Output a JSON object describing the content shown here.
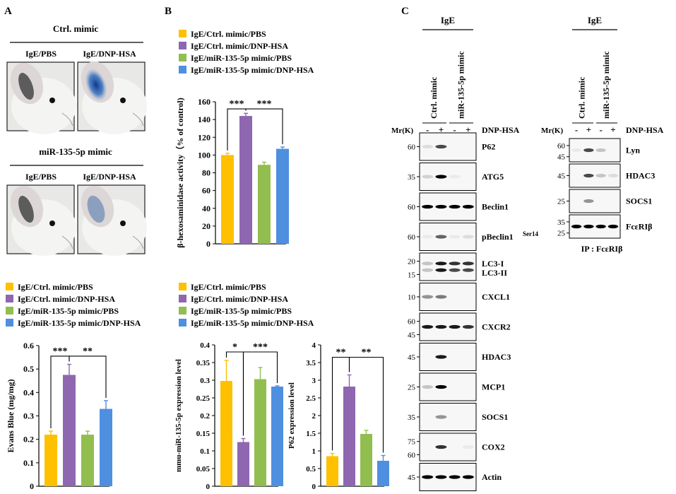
{
  "colors": {
    "ctrl_pbs": "#FFC000",
    "ctrl_dnp": "#8E67B0",
    "mir_pbs": "#92BE4F",
    "mir_dnp": "#4F8FE0"
  },
  "panels": {
    "a": "A",
    "b": "B",
    "c": "C"
  },
  "legend": [
    "IgE/Ctrl. mimic/PBS",
    "IgE/Ctrl. mimic/DNP-HSA",
    "IgE/miR-135-5p mimic/PBS",
    "IgE/miR-135-5p mimic/DNP-HSA"
  ],
  "panel_a": {
    "group1_title": "Ctrl. mimic",
    "group2_title": "miR-135-5p mimic",
    "photo_labels": [
      "IgE/PBS",
      "IgE/DNP-HSA",
      "IgE/PBS",
      "IgE/DNP-HSA"
    ],
    "photo_icon": "mouse-ear-photo"
  },
  "chart_data": [
    {
      "id": "beta-hex",
      "type": "bar",
      "title": "",
      "xlabel": "",
      "ylabel": "β-hexosaminidase activity（% of control)",
      "categories": [
        "IgE/Ctrl. mimic/PBS",
        "IgE/Ctrl. mimic/DNP-HSA",
        "IgE/miR-135-5p mimic/PBS",
        "IgE/miR-135-5p mimic/DNP-HSA"
      ],
      "values": [
        100,
        144,
        89,
        107
      ],
      "errors": [
        2,
        3,
        3,
        2
      ],
      "ylim": [
        0,
        160
      ],
      "yticks": [
        0,
        20,
        40,
        60,
        80,
        100,
        120,
        140,
        160
      ],
      "ytick_labels": [
        "0",
        "20",
        "40",
        "60",
        "80",
        "100",
        "120",
        "140",
        "160"
      ],
      "significance": [
        {
          "from": 0,
          "to": 1,
          "label": "***",
          "level": 152
        },
        {
          "from": 1,
          "to": 3,
          "label": "***",
          "level": 152
        }
      ]
    },
    {
      "id": "evans-blue",
      "type": "bar",
      "title": "",
      "xlabel": "",
      "ylabel": "Evans Blue (mg/mg)",
      "categories": [
        "IgE/Ctrl. mimic/PBS",
        "IgE/Ctrl. mimic/DNP-HSA",
        "IgE/miR-135-5p mimic/PBS",
        "IgE/miR-135-5p mimic/DNP-HSA"
      ],
      "values": [
        0.22,
        0.475,
        0.22,
        0.33
      ],
      "errors": [
        0.015,
        0.045,
        0.015,
        0.035
      ],
      "ylim": [
        0,
        0.6
      ],
      "yticks": [
        0,
        0.1,
        0.2,
        0.3,
        0.4,
        0.5,
        0.6
      ],
      "ytick_labels": [
        "0",
        "0.1",
        "0.2",
        "0.3",
        "0.4",
        "0.5",
        "0.6"
      ],
      "significance": [
        {
          "from": 0,
          "to": 1,
          "label": "***",
          "level": 0.555
        },
        {
          "from": 1,
          "to": 3,
          "label": "**",
          "level": 0.555
        }
      ]
    },
    {
      "id": "mir-expr",
      "type": "bar",
      "title": "",
      "xlabel": "",
      "ylabel": "mmu-miR-135-5p expression level",
      "categories": [
        "IgE/Ctrl. mimic/PBS",
        "IgE/Ctrl. mimic/DNP-HSA",
        "IgE/miR-135-5p mimic/PBS",
        "IgE/miR-135-5p mimic/DNP-HSA"
      ],
      "values": [
        0.298,
        0.125,
        0.303,
        0.282
      ],
      "errors": [
        0.058,
        0.01,
        0.033,
        0.002
      ],
      "ylim": [
        0,
        0.4
      ],
      "yticks": [
        0,
        0.05,
        0.1,
        0.15,
        0.2,
        0.25,
        0.3,
        0.35,
        0.4
      ],
      "ytick_labels": [
        "0",
        "0.05",
        "0.1",
        "0.15",
        "0.2",
        "0.25",
        "0.3",
        "0.35",
        "0.4"
      ],
      "significance": [
        {
          "from": 0,
          "to": 1,
          "label": "*",
          "level": 0.38
        },
        {
          "from": 1,
          "to": 3,
          "label": "***",
          "level": 0.38
        }
      ]
    },
    {
      "id": "p62-expr",
      "type": "bar",
      "title": "",
      "xlabel": "",
      "ylabel": "P62 expression level",
      "categories": [
        "IgE/Ctrl. mimic/PBS",
        "IgE/Ctrl. mimic/DNP-HSA",
        "IgE/miR-135-5p mimic/PBS",
        "IgE/miR-135-5p mimic/DNP-HSA"
      ],
      "values": [
        0.85,
        2.82,
        1.48,
        0.72
      ],
      "errors": [
        0.08,
        0.33,
        0.1,
        0.15
      ],
      "ylim": [
        0,
        4
      ],
      "yticks": [
        0,
        0.5,
        1,
        1.5,
        2,
        2.5,
        3,
        3.5,
        4
      ],
      "ytick_labels": [
        "0",
        "0.5",
        "1",
        "1.5",
        "2",
        "2.5",
        "3",
        "3.5",
        "4"
      ],
      "significance": [
        {
          "from": 0,
          "to": 1,
          "label": "**",
          "level": 3.65
        },
        {
          "from": 1,
          "to": 3,
          "label": "**",
          "level": 3.65
        }
      ]
    }
  ],
  "panel_c": {
    "header": "IgE",
    "lanes": [
      "Ctrl. mimic",
      "miR-135-5p mimic"
    ],
    "mw_label": "Mr(K)",
    "treatment_label": "DNP-HSA",
    "signs": [
      "-",
      "+",
      "-",
      "+"
    ],
    "blots": [
      {
        "label": "P62",
        "markers": [
          "60"
        ]
      },
      {
        "label": "ATG5",
        "markers": [
          "35"
        ]
      },
      {
        "label": "Beclin1",
        "markers": [
          "60"
        ]
      },
      {
        "label": "pBeclin1",
        "sup": "Ser14",
        "markers": [
          "60"
        ]
      },
      {
        "label": "LC3-I",
        "label2": "LC3-II",
        "markers": [
          "20",
          "15"
        ]
      },
      {
        "label": "CXCL1",
        "markers": [
          "10"
        ]
      },
      {
        "label": "CXCR2",
        "markers": [
          "60",
          "45"
        ]
      },
      {
        "label": "HDAC3",
        "markers": [
          "45"
        ]
      },
      {
        "label": "MCP1",
        "markers": [
          "25"
        ]
      },
      {
        "label": "SOCS1",
        "markers": [
          "35"
        ]
      },
      {
        "label": "COX2",
        "markers": [
          "75",
          "60"
        ]
      },
      {
        "label": "Actin",
        "markers": [
          "45"
        ]
      }
    ]
  },
  "panel_c_ip": {
    "header": "IgE",
    "lanes": [
      "Ctrl. mimic",
      "miR-135-5p mimic"
    ],
    "mw_label": "Mr(K)",
    "treatment_label": "DNP-HSA",
    "signs": [
      "-",
      "+",
      "-",
      "+"
    ],
    "blots": [
      {
        "label": "Lyn",
        "markers": [
          "60",
          "45"
        ]
      },
      {
        "label": "HDAC3",
        "markers": [
          "45"
        ]
      },
      {
        "label": "SOCS1",
        "markers": [
          "25"
        ]
      },
      {
        "label": "FcεRIβ",
        "markers": [
          "35",
          "25"
        ]
      }
    ],
    "ip_label": "IP : FcεRIβ"
  }
}
